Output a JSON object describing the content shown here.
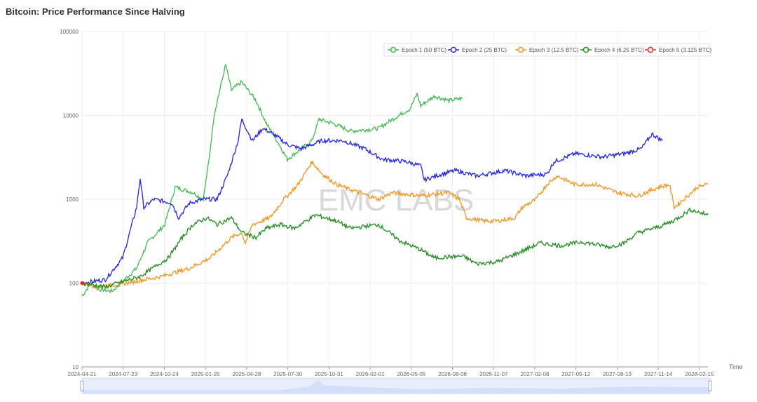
{
  "title": "Bitcoin: Price Performance Since Halving",
  "watermark": "EMC LABS",
  "chart_data": {
    "type": "line",
    "title": "Bitcoin: Price Performance Since Halving",
    "xlabel": "Time",
    "ylabel": "",
    "yscale": "log",
    "ylim": [
      10,
      100000
    ],
    "xlim_days": [
      0,
      1399
    ],
    "y_ticks": [
      "10",
      "100",
      "1000",
      "10000",
      "100000"
    ],
    "x_ticks": [
      "2024-04-21",
      "2024-07-23",
      "2024-10-24",
      "2025-01-25",
      "2025-04-28",
      "2025-07-30",
      "2025-10-31",
      "2026-02-01",
      "2026-05-05",
      "2026-08-06",
      "2026-11-07",
      "2027-02-08",
      "2027-05-12",
      "2027-08-13",
      "2027-11-14",
      "2028-02-15"
    ],
    "legend_position": "top-right",
    "grid": true,
    "series": [
      {
        "name": "Epoch 1 (50 BTC)",
        "color": "#3fb950",
        "points": [
          [
            0,
            70
          ],
          [
            20,
            100
          ],
          [
            36,
            85
          ],
          [
            67,
            80
          ],
          [
            122,
            150
          ],
          [
            146,
            300
          ],
          [
            185,
            500
          ],
          [
            201,
            1000
          ],
          [
            208,
            1400
          ],
          [
            248,
            1200
          ],
          [
            271,
            1000
          ],
          [
            284,
            3000
          ],
          [
            295,
            10000
          ],
          [
            321,
            40000
          ],
          [
            334,
            20000
          ],
          [
            357,
            25000
          ],
          [
            389,
            15000
          ],
          [
            412,
            8000
          ],
          [
            436,
            5000
          ],
          [
            459,
            3000
          ],
          [
            490,
            4000
          ],
          [
            514,
            5000
          ],
          [
            530,
            9000
          ],
          [
            561,
            8000
          ],
          [
            600,
            6500
          ],
          [
            663,
            7000
          ],
          [
            694,
            9000
          ],
          [
            733,
            12000
          ],
          [
            749,
            18000
          ],
          [
            757,
            13000
          ],
          [
            788,
            17000
          ],
          [
            820,
            15000
          ],
          [
            851,
            16000
          ]
        ]
      },
      {
        "name": "Epoch 2 (25 BTC)",
        "color": "#2222ee",
        "points": [
          [
            0,
            100
          ],
          [
            52,
            110
          ],
          [
            91,
            200
          ],
          [
            122,
            800
          ],
          [
            130,
            1800
          ],
          [
            138,
            800
          ],
          [
            161,
            1000
          ],
          [
            201,
            900
          ],
          [
            216,
            600
          ],
          [
            240,
            900
          ],
          [
            271,
            1000
          ],
          [
            302,
            1000
          ],
          [
            326,
            2000
          ],
          [
            349,
            5000
          ],
          [
            357,
            9000
          ],
          [
            381,
            5000
          ],
          [
            404,
            7000
          ],
          [
            428,
            6000
          ],
          [
            459,
            4500
          ],
          [
            490,
            4000
          ],
          [
            537,
            5000
          ],
          [
            584,
            5000
          ],
          [
            632,
            4000
          ],
          [
            671,
            3000
          ],
          [
            726,
            2800
          ],
          [
            757,
            2500
          ],
          [
            765,
            1700
          ],
          [
            804,
            2000
          ],
          [
            835,
            2200
          ],
          [
            882,
            1900
          ],
          [
            945,
            2200
          ],
          [
            992,
            1900
          ],
          [
            1039,
            2000
          ],
          [
            1055,
            2800
          ],
          [
            1102,
            3500
          ],
          [
            1164,
            3200
          ],
          [
            1211,
            3500
          ],
          [
            1250,
            4000
          ],
          [
            1274,
            6000
          ],
          [
            1297,
            5000
          ]
        ]
      },
      {
        "name": "Epoch 3 (12.5 BTC)",
        "color": "#f7931a",
        "points": [
          [
            0,
            100
          ],
          [
            36,
            90
          ],
          [
            99,
            100
          ],
          [
            177,
            120
          ],
          [
            240,
            150
          ],
          [
            287,
            200
          ],
          [
            334,
            350
          ],
          [
            357,
            400
          ],
          [
            365,
            300
          ],
          [
            381,
            500
          ],
          [
            420,
            600
          ],
          [
            451,
            1000
          ],
          [
            483,
            1500
          ],
          [
            514,
            2800
          ],
          [
            537,
            2000
          ],
          [
            569,
            1500
          ],
          [
            600,
            1300
          ],
          [
            663,
            1000
          ],
          [
            694,
            1200
          ],
          [
            757,
            1100
          ],
          [
            820,
            1200
          ],
          [
            843,
            1000
          ],
          [
            859,
            600
          ],
          [
            898,
            550
          ],
          [
            929,
            550
          ],
          [
            968,
            600
          ],
          [
            984,
            800
          ],
          [
            1015,
            1000
          ],
          [
            1039,
            1500
          ],
          [
            1062,
            1900
          ],
          [
            1102,
            1500
          ],
          [
            1149,
            1500
          ],
          [
            1196,
            1200
          ],
          [
            1243,
            1100
          ],
          [
            1290,
            1400
          ],
          [
            1313,
            1500
          ],
          [
            1324,
            800
          ],
          [
            1345,
            1000
          ],
          [
            1376,
            1400
          ],
          [
            1399,
            1500
          ]
        ]
      },
      {
        "name": "Epoch 4 (6.25 BTC)",
        "color": "#1e8c1e",
        "points": [
          [
            0,
            100
          ],
          [
            52,
            90
          ],
          [
            130,
            120
          ],
          [
            193,
            200
          ],
          [
            224,
            350
          ],
          [
            248,
            500
          ],
          [
            279,
            600
          ],
          [
            302,
            500
          ],
          [
            334,
            600
          ],
          [
            357,
            400
          ],
          [
            389,
            350
          ],
          [
            412,
            450
          ],
          [
            443,
            500
          ],
          [
            475,
            450
          ],
          [
            522,
            650
          ],
          [
            569,
            550
          ],
          [
            600,
            450
          ],
          [
            663,
            500
          ],
          [
            710,
            320
          ],
          [
            757,
            250
          ],
          [
            788,
            200
          ],
          [
            851,
            210
          ],
          [
            882,
            170
          ],
          [
            929,
            180
          ],
          [
            976,
            230
          ],
          [
            1023,
            300
          ],
          [
            1070,
            280
          ],
          [
            1117,
            310
          ],
          [
            1180,
            270
          ],
          [
            1211,
            300
          ],
          [
            1243,
            400
          ],
          [
            1290,
            470
          ],
          [
            1321,
            550
          ],
          [
            1360,
            750
          ],
          [
            1399,
            650
          ]
        ]
      },
      {
        "name": "Epoch 5 (3.125 BTC)",
        "color": "#ee2222",
        "points": [
          [
            0,
            100
          ],
          [
            3,
            98
          ],
          [
            6,
            101
          ]
        ]
      }
    ]
  }
}
